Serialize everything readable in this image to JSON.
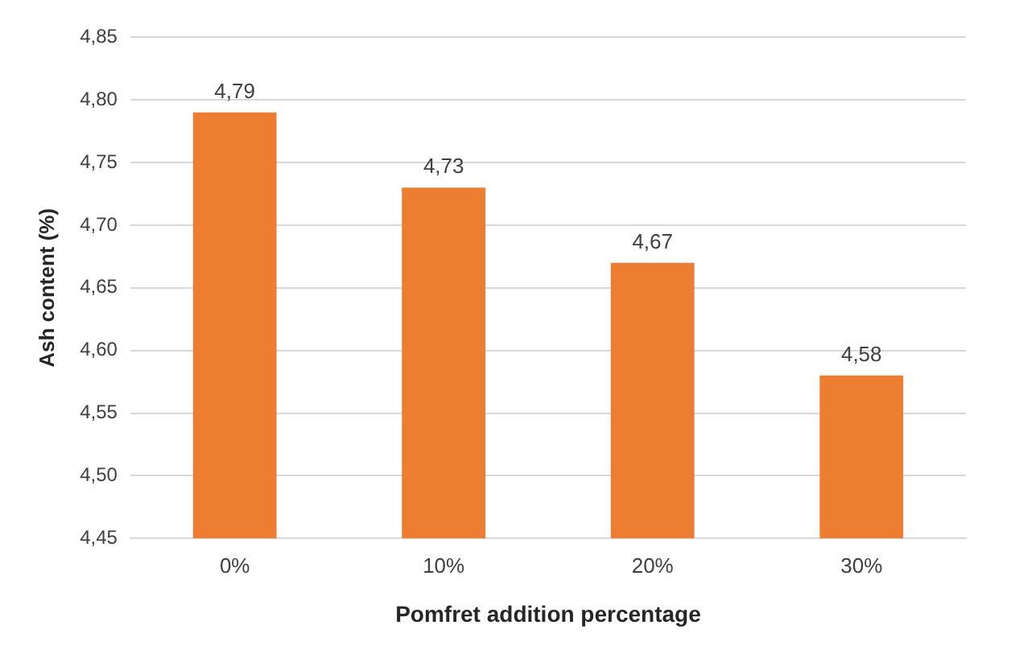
{
  "chart_data": {
    "type": "bar",
    "xlabel": "Pomfret addition percentage",
    "ylabel": "Ash content (%)",
    "categories": [
      "0%",
      "10%",
      "20%",
      "30%"
    ],
    "values": [
      4.79,
      4.73,
      4.67,
      4.58
    ],
    "value_labels": [
      "4,79",
      "4,73",
      "4,67",
      "4,58"
    ],
    "color": "#ed7d31",
    "ylim": [
      4.45,
      4.85
    ],
    "yticks": [
      {
        "value": 4.45,
        "label": "4,45"
      },
      {
        "value": 4.5,
        "label": "4,50"
      },
      {
        "value": 4.55,
        "label": "4,55"
      },
      {
        "value": 4.6,
        "label": "4,60"
      },
      {
        "value": 4.65,
        "label": "4,65"
      },
      {
        "value": 4.7,
        "label": "4,70"
      },
      {
        "value": 4.75,
        "label": "4,75"
      },
      {
        "value": 4.8,
        "label": "4,80"
      },
      {
        "value": 4.85,
        "label": "4,85"
      }
    ],
    "grid": "y",
    "legend": false
  }
}
